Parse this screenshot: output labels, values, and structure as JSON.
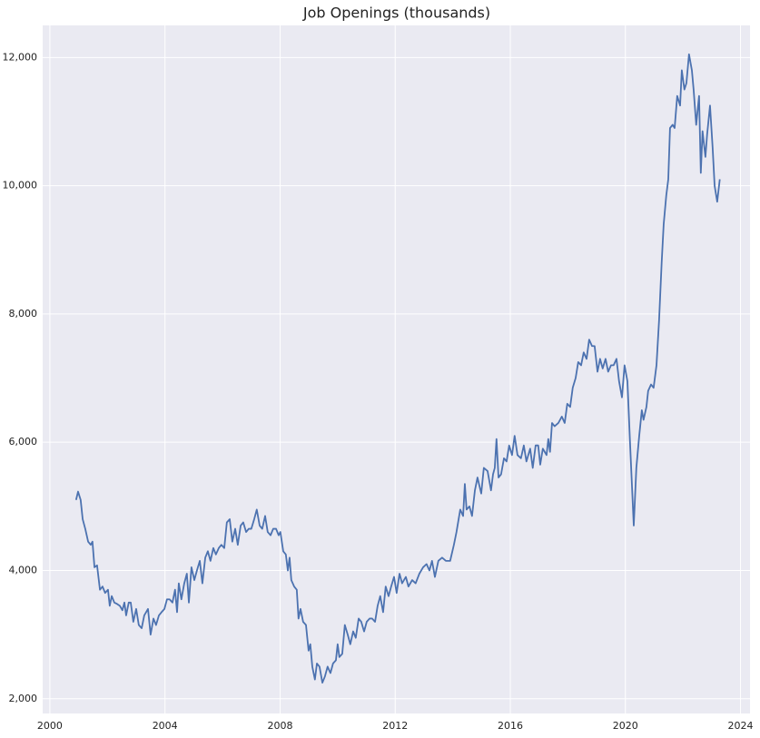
{
  "chart_data": {
    "type": "line",
    "title": "Job Openings (thousands)",
    "color": "#4c72b0",
    "grid": true,
    "xlim": [
      1999.75,
      2024.33
    ],
    "xticks": [
      2000,
      2004,
      2008,
      2012,
      2016,
      2020,
      2024
    ],
    "ylim": [
      1770,
      12500
    ],
    "yticks": [
      {
        "value": 2000,
        "label": "2,000"
      },
      {
        "value": 4000,
        "label": "4,000"
      },
      {
        "value": 6000,
        "label": "6,000"
      },
      {
        "value": 8000,
        "label": "8,000"
      },
      {
        "value": 10000,
        "label": "10,000"
      },
      {
        "value": 12000,
        "label": "12,000"
      }
    ],
    "x": [
      2000.91,
      2000.98,
      2001.07,
      2001.14,
      2001.23,
      2001.33,
      2001.42,
      2001.48,
      2001.55,
      2001.64,
      2001.74,
      2001.83,
      2001.92,
      2002.02,
      2002.08,
      2002.15,
      2002.24,
      2002.33,
      2002.43,
      2002.52,
      2002.59,
      2002.65,
      2002.74,
      2002.81,
      2002.9,
      2003.0,
      2003.09,
      2003.19,
      2003.28,
      2003.41,
      2003.5,
      2003.6,
      2003.69,
      2003.79,
      2003.88,
      2003.98,
      2004.07,
      2004.16,
      2004.26,
      2004.35,
      2004.42,
      2004.48,
      2004.57,
      2004.67,
      2004.76,
      2004.83,
      2004.92,
      2005.02,
      2005.11,
      2005.21,
      2005.3,
      2005.4,
      2005.49,
      2005.58,
      2005.68,
      2005.77,
      2005.87,
      2005.96,
      2006.06,
      2006.15,
      2006.25,
      2006.34,
      2006.44,
      2006.53,
      2006.63,
      2006.72,
      2006.82,
      2006.91,
      2007.0,
      2007.1,
      2007.19,
      2007.29,
      2007.38,
      2007.48,
      2007.57,
      2007.67,
      2007.76,
      2007.86,
      2007.95,
      2008.01,
      2008.11,
      2008.2,
      2008.27,
      2008.33,
      2008.39,
      2008.49,
      2008.58,
      2008.64,
      2008.71,
      2008.8,
      2008.9,
      2008.99,
      2009.05,
      2009.12,
      2009.21,
      2009.28,
      2009.37,
      2009.47,
      2009.56,
      2009.65,
      2009.75,
      2009.84,
      2009.94,
      2010.0,
      2010.06,
      2010.16,
      2010.25,
      2010.35,
      2010.44,
      2010.54,
      2010.63,
      2010.73,
      2010.82,
      2010.92,
      2011.01,
      2011.11,
      2011.2,
      2011.3,
      2011.39,
      2011.48,
      2011.58,
      2011.67,
      2011.77,
      2011.86,
      2011.96,
      2012.05,
      2012.15,
      2012.24,
      2012.37,
      2012.46,
      2012.59,
      2012.71,
      2012.84,
      2012.97,
      2013.09,
      2013.19,
      2013.28,
      2013.38,
      2013.5,
      2013.63,
      2013.76,
      2013.91,
      2014.04,
      2014.13,
      2014.26,
      2014.36,
      2014.42,
      2014.48,
      2014.58,
      2014.67,
      2014.77,
      2014.86,
      2014.99,
      2015.08,
      2015.21,
      2015.33,
      2015.4,
      2015.46,
      2015.52,
      2015.59,
      2015.68,
      2015.78,
      2015.87,
      2015.96,
      2016.06,
      2016.15,
      2016.25,
      2016.37,
      2016.47,
      2016.56,
      2016.69,
      2016.78,
      2016.88,
      2016.97,
      2017.04,
      2017.13,
      2017.26,
      2017.32,
      2017.38,
      2017.45,
      2017.54,
      2017.67,
      2017.79,
      2017.89,
      2017.98,
      2018.08,
      2018.17,
      2018.27,
      2018.36,
      2018.46,
      2018.55,
      2018.65,
      2018.74,
      2018.84,
      2018.93,
      2019.03,
      2019.12,
      2019.21,
      2019.31,
      2019.4,
      2019.5,
      2019.59,
      2019.69,
      2019.78,
      2019.88,
      2019.97,
      2020.07,
      2020.16,
      2020.29,
      2020.38,
      2020.48,
      2020.57,
      2020.63,
      2020.73,
      2020.79,
      2020.89,
      2020.98,
      2021.08,
      2021.17,
      2021.26,
      2021.33,
      2021.42,
      2021.49,
      2021.55,
      2021.64,
      2021.71,
      2021.8,
      2021.9,
      2021.96,
      2022.05,
      2022.12,
      2022.21,
      2022.31,
      2022.37,
      2022.46,
      2022.56,
      2022.62,
      2022.68,
      2022.78,
      2022.84,
      2022.94,
      2023.03,
      2023.1,
      2023.19,
      2023.28
    ],
    "values": [
      5100,
      5230,
      5100,
      4800,
      4650,
      4450,
      4400,
      4450,
      4050,
      4080,
      3700,
      3750,
      3650,
      3700,
      3450,
      3600,
      3500,
      3480,
      3450,
      3380,
      3500,
      3300,
      3500,
      3500,
      3200,
      3400,
      3150,
      3100,
      3300,
      3400,
      3000,
      3250,
      3150,
      3300,
      3350,
      3400,
      3550,
      3550,
      3500,
      3700,
      3350,
      3800,
      3550,
      3800,
      3950,
      3500,
      4050,
      3850,
      4000,
      4150,
      3800,
      4200,
      4300,
      4150,
      4350,
      4250,
      4350,
      4400,
      4350,
      4750,
      4800,
      4450,
      4650,
      4400,
      4700,
      4750,
      4600,
      4650,
      4650,
      4800,
      4950,
      4700,
      4650,
      4850,
      4600,
      4550,
      4650,
      4650,
      4550,
      4600,
      4300,
      4250,
      4000,
      4200,
      3850,
      3750,
      3700,
      3250,
      3400,
      3200,
      3150,
      2750,
      2850,
      2500,
      2300,
      2550,
      2500,
      2250,
      2350,
      2500,
      2400,
      2550,
      2600,
      2850,
      2650,
      2700,
      3150,
      3000,
      2850,
      3050,
      2950,
      3250,
      3200,
      3050,
      3200,
      3250,
      3250,
      3200,
      3450,
      3600,
      3350,
      3750,
      3600,
      3750,
      3900,
      3650,
      3950,
      3800,
      3900,
      3750,
      3850,
      3800,
      3950,
      4050,
      4100,
      4000,
      4150,
      3900,
      4150,
      4200,
      4150,
      4150,
      4400,
      4600,
      4950,
      4850,
      5350,
      4950,
      5000,
      4850,
      5250,
      5450,
      5200,
      5600,
      5550,
      5250,
      5500,
      5600,
      6050,
      5450,
      5500,
      5750,
      5700,
      5950,
      5800,
      6100,
      5800,
      5750,
      5950,
      5700,
      5900,
      5600,
      5950,
      5950,
      5650,
      5900,
      5800,
      6050,
      5850,
      6300,
      6250,
      6300,
      6400,
      6300,
      6600,
      6550,
      6850,
      7000,
      7250,
      7200,
      7400,
      7300,
      7600,
      7500,
      7500,
      7100,
      7300,
      7150,
      7300,
      7100,
      7200,
      7200,
      7300,
      6950,
      6700,
      7200,
      6950,
      6000,
      4700,
      5600,
      6100,
      6500,
      6350,
      6550,
      6800,
      6900,
      6850,
      7200,
      7900,
      8800,
      9400,
      9850,
      10100,
      10900,
      10950,
      10900,
      11400,
      11250,
      11800,
      11500,
      11600,
      12050,
      11800,
      11500,
      10950,
      11400,
      10200,
      10850,
      10450,
      10800,
      11250,
      10600,
      10000,
      9750,
      10100
    ]
  }
}
